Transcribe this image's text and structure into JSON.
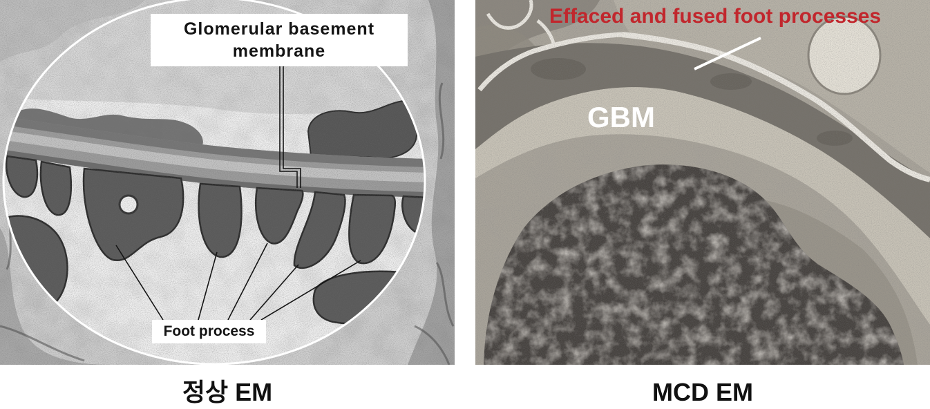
{
  "figure": {
    "normal_em": {
      "gbm_label_line1": "Glomerular basement",
      "gbm_label_line2": "membrane",
      "foot_process_label": "Foot process",
      "caption": "정상 EM"
    },
    "mcd_em": {
      "effaced_label": "Effaced and fused foot processes",
      "gbm_label": "GBM",
      "caption": "MCD EM"
    }
  },
  "colors": {
    "annotation_red": "#c1272d",
    "annotation_white": "#ffffff",
    "leader_line_dark": "#151515",
    "caption_text": "#111111"
  }
}
